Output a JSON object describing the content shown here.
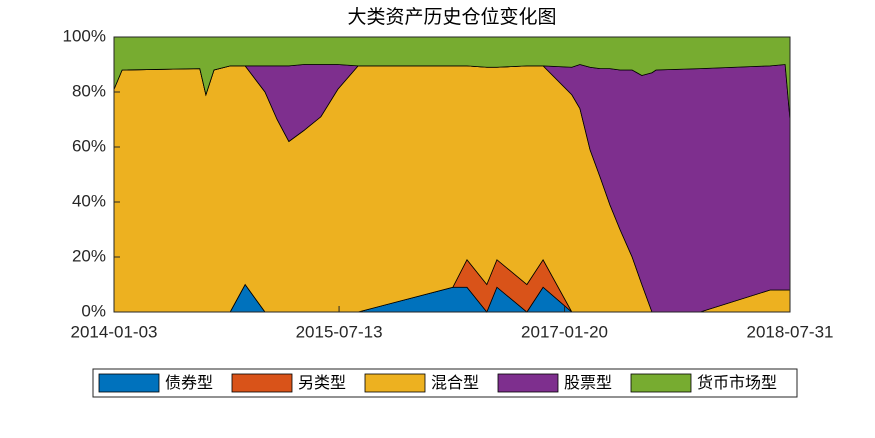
{
  "chart_data": {
    "type": "stacked-area",
    "title": "大类资产历史仓位变化图",
    "x": [
      "2014-01-03",
      "2014-01-23",
      "2014-08-03",
      "2014-08-18",
      "2014-09-07",
      "2014-10-17",
      "2014-11-23",
      "2015-01-11",
      "2015-02-10",
      "2015-03-11",
      "2015-04-17",
      "2015-05-29",
      "2015-07-10",
      "2015-08-29",
      "2016-04-19",
      "2016-05-24",
      "2016-07-12",
      "2016-08-06",
      "2016-10-19",
      "2016-11-28",
      "2017-02-07",
      "2017-02-27",
      "2017-03-24",
      "2017-04-18",
      "2017-05-12",
      "2017-06-06",
      "2017-07-06",
      "2017-07-30",
      "2017-08-24",
      "2017-09-03",
      "2017-12-21",
      "2018-06-12",
      "2018-07-19",
      "2018-07-31"
    ],
    "series": [
      {
        "name": "债券型",
        "color": "#0072BD",
        "values": [
          0,
          0,
          0,
          0,
          0,
          0,
          10,
          0,
          0,
          0,
          0,
          0,
          0,
          0,
          9,
          9,
          0,
          9,
          0,
          9,
          0,
          0,
          0,
          0,
          0,
          0,
          0,
          0,
          0,
          0,
          0,
          0,
          0,
          0
        ]
      },
      {
        "name": "另类型",
        "color": "#D95319",
        "values": [
          0,
          0,
          0,
          0,
          0,
          0,
          0,
          0,
          0,
          0,
          0,
          0,
          0,
          0,
          0,
          10,
          10,
          10,
          10,
          10,
          0,
          0,
          0,
          0,
          0,
          0,
          0,
          0,
          0,
          0,
          0,
          0,
          0,
          0
        ]
      },
      {
        "name": "混合型",
        "color": "#EDB120",
        "values": [
          81,
          88,
          88.5,
          79,
          88,
          89.5,
          79.5,
          80,
          70,
          62,
          66,
          71,
          81,
          89.5,
          80.5,
          70.5,
          79,
          70,
          79.5,
          70.5,
          79,
          74,
          59,
          49,
          39,
          30,
          20,
          10,
          0,
          0,
          0,
          8,
          8,
          8
        ]
      },
      {
        "name": "股票型",
        "color": "#7E2F8E",
        "values": [
          0,
          0,
          0,
          0,
          0,
          0,
          0,
          9.5,
          19.5,
          27.5,
          24,
          19,
          9,
          0,
          0,
          0,
          0,
          0,
          0,
          0,
          10,
          16,
          30,
          39.5,
          49.5,
          58,
          68,
          76,
          87,
          88,
          88.5,
          81.5,
          82,
          62
        ]
      },
      {
        "name": "货币市场型",
        "color": "#77AC30",
        "values": [
          19,
          12,
          11.5,
          21,
          12,
          10.5,
          10.5,
          10.5,
          10.5,
          10.5,
          10,
          10,
          10,
          10.5,
          10.5,
          10.5,
          11,
          11,
          10.5,
          10.5,
          11,
          10,
          11,
          11.5,
          11.5,
          12,
          12,
          14,
          13,
          12,
          11.5,
          10.5,
          10,
          30
        ]
      }
    ],
    "xlim": [
      "2014-01-03",
      "2018-07-31"
    ],
    "xticks": [
      "2014-01-03",
      "2015-07-13",
      "2017-01-20",
      "2018-07-31"
    ],
    "ylim": [
      0,
      100
    ],
    "yticks": [
      {
        "value": 0,
        "label": "0%"
      },
      {
        "value": 20,
        "label": "20%"
      },
      {
        "value": 40,
        "label": "40%"
      },
      {
        "value": 60,
        "label": "60%"
      },
      {
        "value": 80,
        "label": "80%"
      },
      {
        "value": 100,
        "label": "100%"
      }
    ],
    "legend": "bottom"
  }
}
